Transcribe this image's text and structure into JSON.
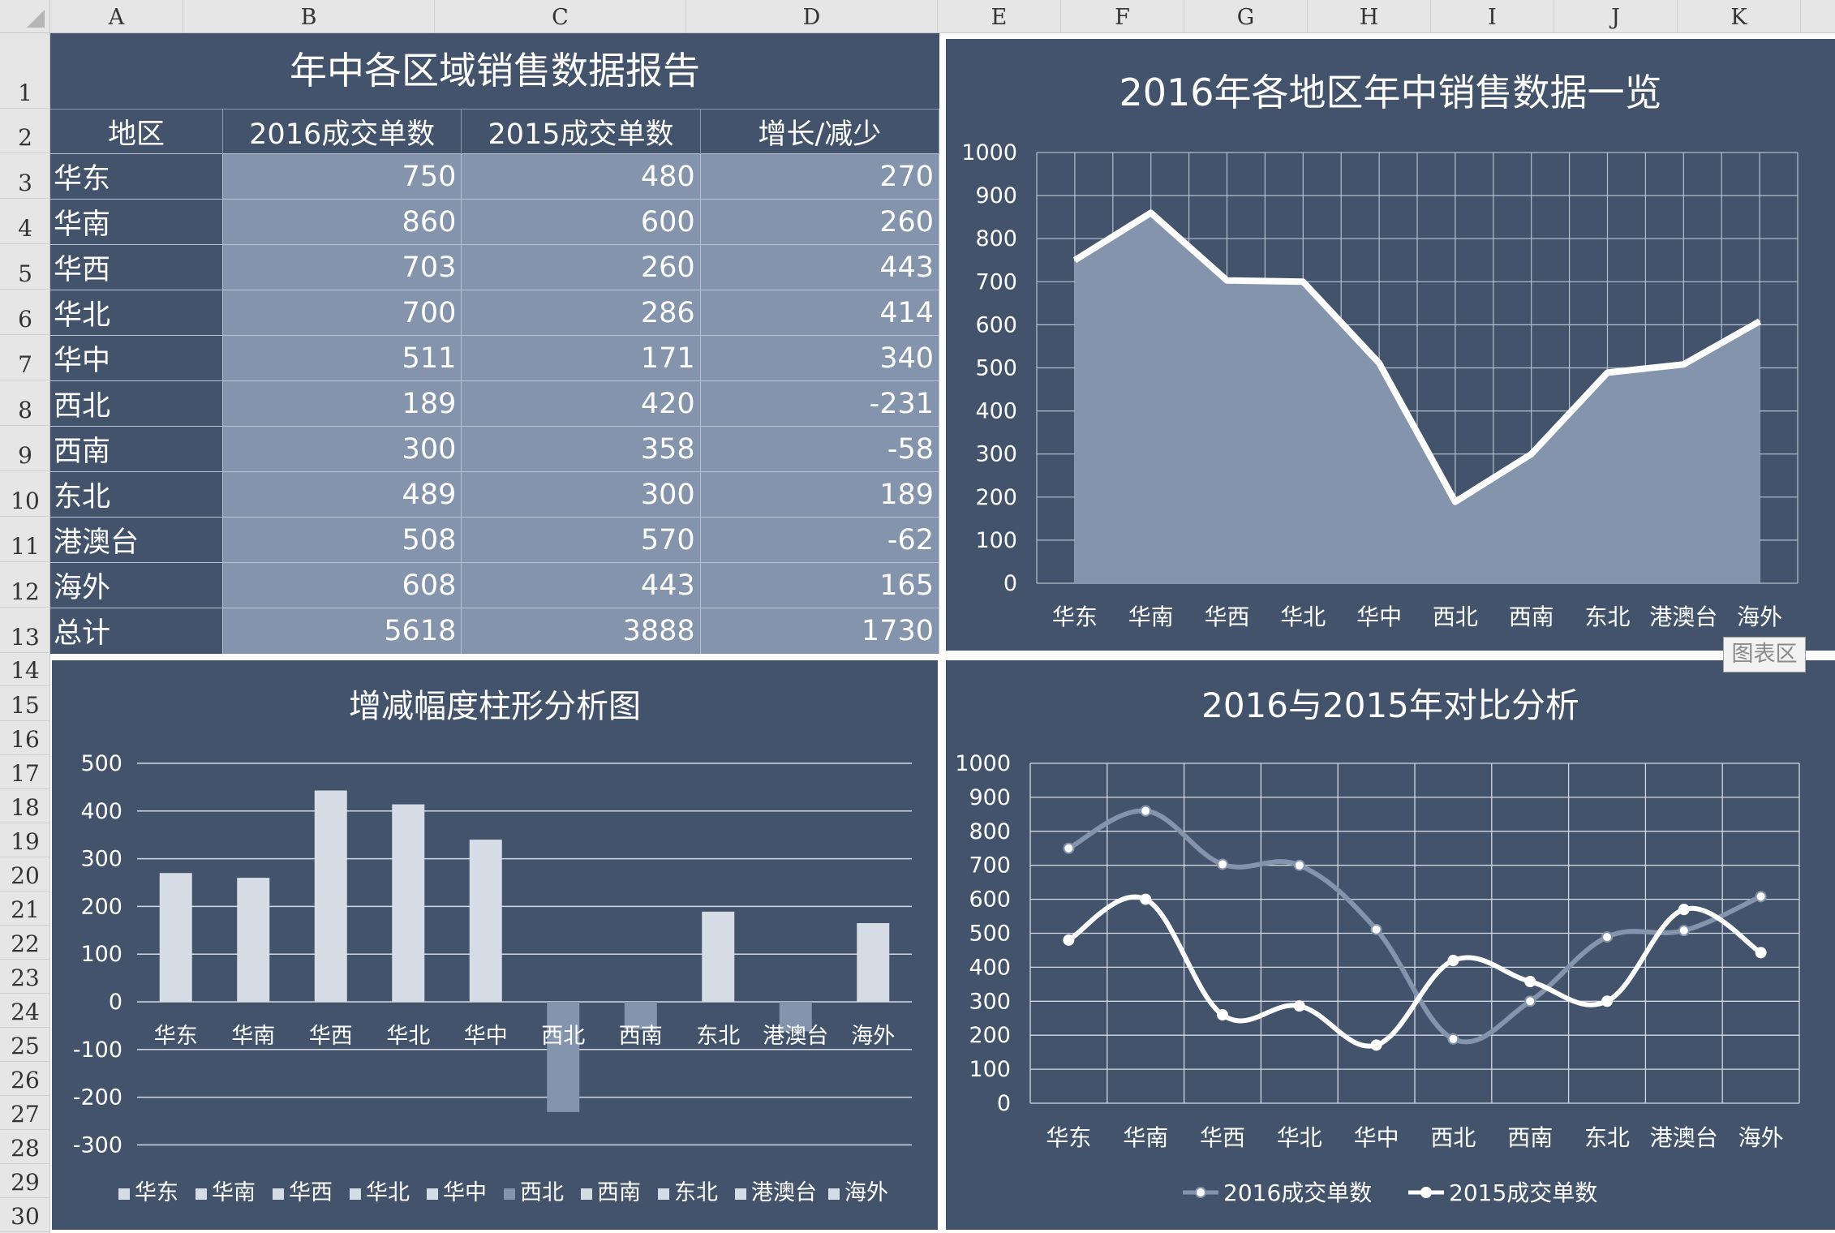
{
  "spreadsheet": {
    "columns": [
      "A",
      "B",
      "C",
      "D",
      "E",
      "F",
      "G",
      "H",
      "I",
      "J",
      "K"
    ],
    "rows": [
      "1",
      "2",
      "3",
      "4",
      "5",
      "6",
      "7",
      "8",
      "9",
      "10",
      "11",
      "12",
      "13",
      "14",
      "15",
      "16",
      "17",
      "18",
      "19",
      "20",
      "21",
      "22",
      "23",
      "24",
      "25",
      "26",
      "27",
      "28",
      "29",
      "30"
    ]
  },
  "report": {
    "title": "年中各区域销售数据报告",
    "headers": [
      "地区",
      "2016成交单数",
      "2015成交单数",
      "增长/减少"
    ],
    "rows": [
      [
        "华东",
        "750",
        "480",
        "270"
      ],
      [
        "华南",
        "860",
        "600",
        "260"
      ],
      [
        "华西",
        "703",
        "260",
        "443"
      ],
      [
        "华北",
        "700",
        "286",
        "414"
      ],
      [
        "华中",
        "511",
        "171",
        "340"
      ],
      [
        "西北",
        "189",
        "420",
        "-231"
      ],
      [
        "西南",
        "300",
        "358",
        "-58"
      ],
      [
        "东北",
        "489",
        "300",
        "189"
      ],
      [
        "港澳台",
        "508",
        "570",
        "-62"
      ],
      [
        "海外",
        "608",
        "443",
        "165"
      ],
      [
        "总计",
        "5618",
        "3888",
        "1730"
      ]
    ]
  },
  "tooltip": "图表区",
  "colors": {
    "panel": "#43536b",
    "light": "#8494ac",
    "bar_pos": "#d6dce5",
    "bar_neg": "#8494ac",
    "line2016": "#8494ac",
    "line2015": "#ffffff"
  },
  "chart_data": [
    {
      "type": "area",
      "title": "2016年各地区年中销售数据一览",
      "categories": [
        "华东",
        "华南",
        "华西",
        "华北",
        "华中",
        "西北",
        "西南",
        "东北",
        "港澳台",
        "海外"
      ],
      "series": [
        {
          "values": [
            750,
            860,
            703,
            700,
            511,
            189,
            300,
            489,
            508,
            608
          ]
        }
      ],
      "ylim": [
        0,
        1000
      ],
      "yticks": [
        "0",
        "100",
        "200",
        "300",
        "400",
        "500",
        "600",
        "700",
        "800",
        "900",
        "1000"
      ],
      "grid": true
    },
    {
      "type": "bar",
      "title": "增减幅度柱形分析图",
      "categories": [
        "华东",
        "华南",
        "华西",
        "华北",
        "华中",
        "西北",
        "西南",
        "东北",
        "港澳台",
        "海外"
      ],
      "values": [
        270,
        260,
        443,
        414,
        340,
        -231,
        -58,
        189,
        -62,
        165
      ],
      "ylim": [
        -300,
        500
      ],
      "yticks": [
        "500",
        "400",
        "300",
        "200",
        "100",
        "0",
        "-100",
        "-200",
        "-300"
      ],
      "legend": "bottom",
      "grid": true
    },
    {
      "type": "line",
      "title": "2016与2015年对比分析",
      "categories": [
        "华东",
        "华南",
        "华西",
        "华北",
        "华中",
        "西北",
        "西南",
        "东北",
        "港澳台",
        "海外"
      ],
      "series": [
        {
          "name": "2016成交单数",
          "values": [
            750,
            860,
            703,
            700,
            511,
            189,
            300,
            489,
            508,
            608
          ]
        },
        {
          "name": "2015成交单数",
          "values": [
            480,
            600,
            260,
            286,
            171,
            420,
            358,
            300,
            570,
            443
          ]
        }
      ],
      "ylim": [
        0,
        1000
      ],
      "yticks": [
        "0",
        "100",
        "200",
        "300",
        "400",
        "500",
        "600",
        "700",
        "800",
        "900",
        "1000"
      ],
      "legend": "bottom",
      "grid": true
    }
  ]
}
